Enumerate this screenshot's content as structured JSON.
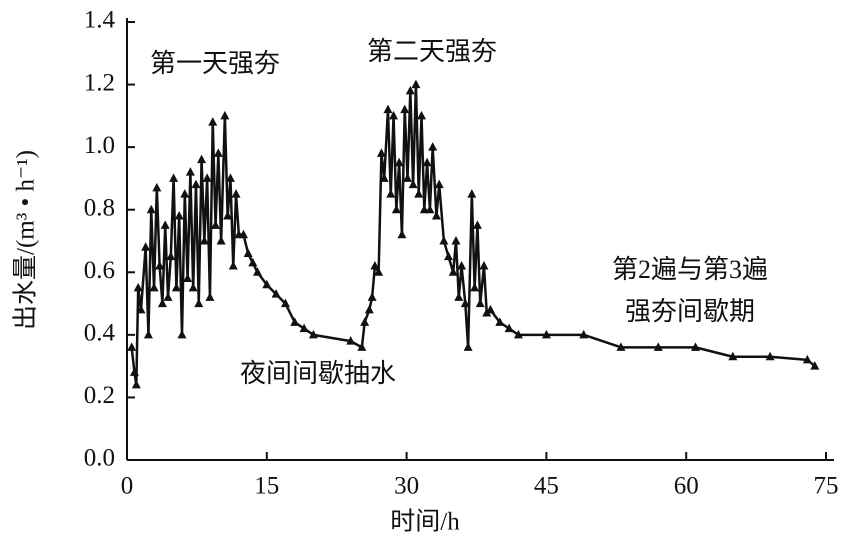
{
  "chart_data": {
    "type": "line",
    "xlabel": "时间/h",
    "ylabel": "出水量/(m³ • h⁻¹)",
    "annotations": [
      "第一天强夯",
      "第二天强夯",
      "夜间间歇抽水",
      "第2遍与第3遍",
      "强夯间歇期"
    ],
    "xlim": [
      0,
      75
    ],
    "xticks": [
      0,
      15,
      30,
      45,
      60,
      75
    ],
    "ylim": [
      0,
      1.4
    ],
    "yticks": [
      {
        "value": 0,
        "label": "0.0"
      },
      0.2,
      0.4,
      0.6,
      0.8,
      {
        "value": 1,
        "label": "1.0"
      },
      1.2,
      1.4
    ],
    "x": [
      0.5,
      0.8,
      1.0,
      1.2,
      1.5,
      2.0,
      2.3,
      2.6,
      2.9,
      3.2,
      3.5,
      3.8,
      4.1,
      4.4,
      4.7,
      5.0,
      5.3,
      5.6,
      5.9,
      6.2,
      6.5,
      6.8,
      7.1,
      7.4,
      7.7,
      8.0,
      8.3,
      8.6,
      8.9,
      9.2,
      9.5,
      9.8,
      10.1,
      10.5,
      10.8,
      11.1,
      11.4,
      11.7,
      12.0,
      12.5,
      13,
      13.5,
      14,
      15,
      16,
      17,
      18,
      19,
      20,
      24,
      25.2,
      25.5,
      26,
      26.3,
      26.6,
      27,
      27.3,
      27.6,
      28,
      28.3,
      28.6,
      28.9,
      29.2,
      29.5,
      29.8,
      30.1,
      30.4,
      30.7,
      31,
      31.3,
      31.6,
      31.9,
      32.2,
      32.5,
      32.8,
      33.2,
      33.5,
      34,
      34.5,
      35,
      35.3,
      35.6,
      35.9,
      36.3,
      36.6,
      37,
      37.3,
      37.6,
      37.9,
      38.3,
      38.6,
      39,
      40,
      41,
      42,
      45,
      49,
      53,
      57,
      61,
      65,
      69,
      73,
      73.8
    ],
    "series": [
      {
        "name": "出水量",
        "color": "#111111",
        "values": [
          0.36,
          0.28,
          0.24,
          0.55,
          0.48,
          0.68,
          0.4,
          0.8,
          0.55,
          0.87,
          0.62,
          0.5,
          0.75,
          0.52,
          0.65,
          0.9,
          0.55,
          0.78,
          0.4,
          0.85,
          0.58,
          0.92,
          0.55,
          0.88,
          0.5,
          0.96,
          0.7,
          0.9,
          0.52,
          1.08,
          0.75,
          0.98,
          0.7,
          1.1,
          0.78,
          0.9,
          0.62,
          0.85,
          0.72,
          0.72,
          0.66,
          0.63,
          0.6,
          0.56,
          0.53,
          0.5,
          0.44,
          0.42,
          0.4,
          0.38,
          0.36,
          0.44,
          0.48,
          0.52,
          0.62,
          0.6,
          0.98,
          0.9,
          1.12,
          0.85,
          1.1,
          0.8,
          0.95,
          0.72,
          1.12,
          0.9,
          1.18,
          0.88,
          1.2,
          0.85,
          1.1,
          0.8,
          0.95,
          0.8,
          1.0,
          0.78,
          0.88,
          0.7,
          0.65,
          0.6,
          0.7,
          0.52,
          0.62,
          0.5,
          0.36,
          0.85,
          0.55,
          0.75,
          0.5,
          0.62,
          0.47,
          0.48,
          0.44,
          0.42,
          0.4,
          0.4,
          0.4,
          0.36,
          0.36,
          0.36,
          0.33,
          0.33,
          0.32,
          0.3
        ]
      }
    ]
  }
}
